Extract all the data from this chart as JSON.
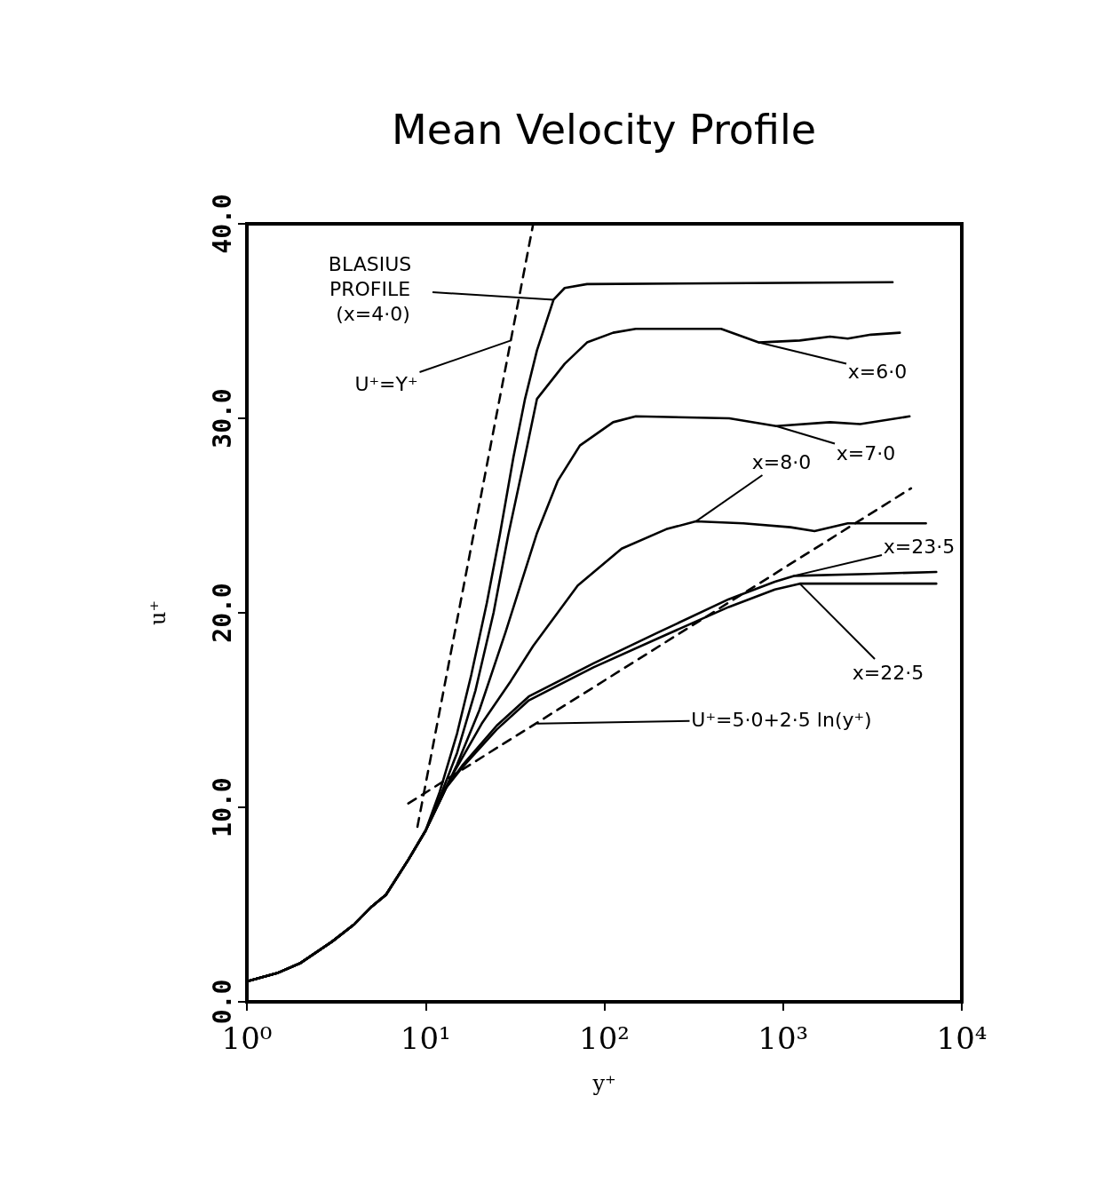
{
  "chart_data": {
    "type": "line",
    "title": "Mean Velocity Profile",
    "xlabel": "y⁺",
    "ylabel": "u⁺",
    "log": "x",
    "grid": false,
    "marker": "none",
    "xlim": [
      1,
      10000
    ],
    "xticks": [
      {
        "value": 1,
        "label": "10⁰"
      },
      {
        "value": 10,
        "label": "10¹"
      },
      {
        "value": 100,
        "label": "10²"
      },
      {
        "value": 1000,
        "label": "10³"
      },
      {
        "value": 10000,
        "label": "10⁴"
      }
    ],
    "ylim": [
      0,
      40
    ],
    "yticks": [
      {
        "value": 0,
        "label": "0.0"
      },
      {
        "value": 10,
        "label": "10.0"
      },
      {
        "value": 20,
        "label": "20.0"
      },
      {
        "value": 30,
        "label": "30.0"
      },
      {
        "value": 40,
        "label": "40.0"
      }
    ],
    "series": [
      {
        "color": "#000000",
        "line_style": "solid",
        "x": [
          1,
          1.5,
          2,
          3,
          4,
          5,
          6,
          8,
          10,
          12,
          15,
          18,
          22,
          26,
          31,
          36,
          42,
          52,
          60,
          80,
          4100
        ],
        "values": [
          1.05,
          1.5,
          2.0,
          3.1,
          4.0,
          4.9,
          5.5,
          7.3,
          8.8,
          10.8,
          13.8,
          16.8,
          20.5,
          24,
          28,
          31,
          33.5,
          36.1,
          36.7,
          36.9,
          37.0
        ]
      },
      {
        "color": "#000000",
        "line_style": "solid",
        "x": [
          1,
          1.5,
          2,
          3,
          4,
          5,
          6,
          8,
          10,
          12,
          15,
          19,
          24,
          29,
          35,
          42,
          60,
          80,
          112,
          150,
          450,
          730,
          1240,
          1830,
          2300,
          3100,
          4500
        ],
        "values": [
          1.05,
          1.5,
          2.0,
          3.1,
          4.0,
          4.9,
          5.5,
          7.3,
          8.8,
          10.5,
          12.8,
          16,
          20,
          24,
          27.5,
          31,
          32.8,
          33.9,
          34.4,
          34.6,
          34.6,
          33.9,
          34.0,
          34.2,
          34.1,
          34.3,
          34.4
        ]
      },
      {
        "color": "#000000",
        "line_style": "solid",
        "x": [
          1,
          1.5,
          2,
          3,
          4,
          5,
          6,
          8,
          10,
          12,
          15,
          20,
          28,
          42,
          55,
          73,
          112,
          150,
          500,
          915,
          1830,
          2700,
          5100
        ],
        "values": [
          1.05,
          1.5,
          2.0,
          3.1,
          4.0,
          4.9,
          5.5,
          7.3,
          8.8,
          10.3,
          12.2,
          15,
          19,
          24.1,
          26.8,
          28.6,
          29.8,
          30.1,
          30.0,
          29.6,
          29.8,
          29.7,
          30.1
        ]
      },
      {
        "color": "#000000",
        "line_style": "solid",
        "x": [
          1,
          1.5,
          2,
          3,
          4,
          5,
          6,
          8,
          10,
          13.6,
          20.6,
          30,
          40,
          71,
          125,
          222,
          325,
          600,
          1100,
          1500,
          2300,
          6300
        ],
        "values": [
          1.05,
          1.5,
          2.0,
          3.1,
          4.0,
          4.9,
          5.5,
          7.3,
          8.8,
          11.4,
          14.3,
          16.5,
          18.3,
          21.4,
          23.3,
          24.3,
          24.7,
          24.6,
          24.4,
          24.2,
          24.6,
          24.6
        ]
      },
      {
        "color": "#000000",
        "line_style": "solid",
        "x": [
          1,
          1.5,
          2,
          3,
          4,
          5,
          6,
          8,
          10,
          13,
          16.2,
          25,
          37.8,
          87,
          201,
          497,
          900,
          1150,
          3000,
          7200
        ],
        "values": [
          1.05,
          1.5,
          2.0,
          3.1,
          4.0,
          4.9,
          5.5,
          7.3,
          8.8,
          11,
          12.2,
          14.2,
          15.7,
          17.4,
          19,
          20.7,
          21.6,
          21.9,
          22.0,
          22.1
        ]
      },
      {
        "color": "#000000",
        "line_style": "solid",
        "x": [
          1,
          1.5,
          2,
          3,
          4,
          5,
          6,
          8,
          10,
          13,
          16.2,
          25,
          37.8,
          87,
          201,
          497,
          900,
          1240,
          7200
        ],
        "values": [
          1.05,
          1.5,
          2.0,
          3.1,
          4.0,
          4.9,
          5.5,
          7.3,
          8.8,
          11,
          12.1,
          14,
          15.5,
          17.2,
          18.7,
          20.3,
          21.2,
          21.5,
          21.5
        ]
      },
      {
        "color": "#000000",
        "line_style": "dashed",
        "x": [
          9,
          40
        ],
        "values": [
          9,
          40
        ]
      },
      {
        "color": "#000000",
        "line_style": "dashed",
        "x": [
          8,
          5200
        ],
        "values": [
          10.2,
          26.4
        ]
      }
    ],
    "annotations": [
      {
        "text": "BLASIUS PROFILE (x=4·0)",
        "x": 52,
        "y": 36.1
      },
      {
        "text": "U⁺=Y⁺",
        "x": 30,
        "y": 34.0
      },
      {
        "text": "x=6·0",
        "x": 730,
        "y": 33.9
      },
      {
        "text": "x=7·0",
        "x": 915,
        "y": 29.6
      },
      {
        "text": "x=8·0",
        "x": 325,
        "y": 24.7
      },
      {
        "text": "x=23·5",
        "x": 1150,
        "y": 21.9
      },
      {
        "text": "x=22·5",
        "x": 1240,
        "y": 21.5
      },
      {
        "text": "U⁺=5·0+2·5 ln(y⁺)",
        "x": 42,
        "y": 14.3
      }
    ]
  }
}
